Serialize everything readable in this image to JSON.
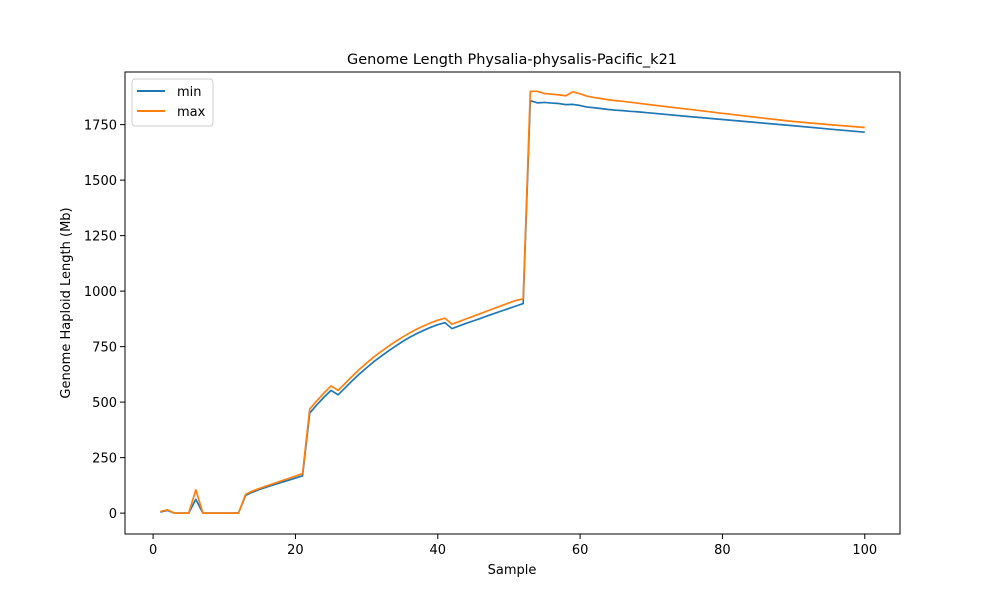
{
  "chart_data": {
    "type": "line",
    "title": "Genome Length Physalia-physalis-Pacific_k21",
    "xlabel": "Sample",
    "ylabel": "Genome Haploid Length (Mb)",
    "xlim": [
      -3.95,
      104.95
    ],
    "ylim": [
      -94,
      1987
    ],
    "x_ticks": [
      0,
      20,
      40,
      60,
      80,
      100
    ],
    "y_ticks": [
      0,
      250,
      500,
      750,
      1000,
      1250,
      1500,
      1750
    ],
    "legend_position": "upper-left",
    "grid": false,
    "series": [
      {
        "name": "min",
        "color": "#1f77b4",
        "points": [
          [
            1,
            5
          ],
          [
            2,
            12
          ],
          [
            3,
            0
          ],
          [
            4,
            0
          ],
          [
            5,
            0
          ],
          [
            6,
            62
          ],
          [
            7,
            0
          ],
          [
            8,
            0
          ],
          [
            9,
            0
          ],
          [
            10,
            0
          ],
          [
            11,
            0
          ],
          [
            12,
            1
          ],
          [
            13,
            80
          ],
          [
            14,
            95
          ],
          [
            15,
            107
          ],
          [
            16,
            118
          ],
          [
            17,
            128
          ],
          [
            18,
            138
          ],
          [
            19,
            148
          ],
          [
            20,
            158
          ],
          [
            21,
            168
          ],
          [
            22,
            450
          ],
          [
            23,
            488
          ],
          [
            24,
            522
          ],
          [
            25,
            553
          ],
          [
            26,
            533
          ],
          [
            27,
            565
          ],
          [
            28,
            597
          ],
          [
            29,
            627
          ],
          [
            30,
            655
          ],
          [
            31,
            682
          ],
          [
            32,
            706
          ],
          [
            33,
            729
          ],
          [
            34,
            751
          ],
          [
            35,
            772
          ],
          [
            36,
            791
          ],
          [
            37,
            808
          ],
          [
            38,
            823
          ],
          [
            39,
            837
          ],
          [
            40,
            849
          ],
          [
            41,
            858
          ],
          [
            42,
            831
          ],
          [
            43,
            843
          ],
          [
            44,
            855
          ],
          [
            45,
            866
          ],
          [
            46,
            877
          ],
          [
            47,
            889
          ],
          [
            48,
            900
          ],
          [
            49,
            911
          ],
          [
            50,
            922
          ],
          [
            51,
            933
          ],
          [
            52,
            944
          ],
          [
            53,
            1858
          ],
          [
            54,
            1848
          ],
          [
            55,
            1850
          ],
          [
            56,
            1847
          ],
          [
            57,
            1845
          ],
          [
            58,
            1840
          ],
          [
            59,
            1841
          ],
          [
            60,
            1836
          ],
          [
            61,
            1829
          ],
          [
            62,
            1826
          ],
          [
            63,
            1822
          ],
          [
            64,
            1818
          ],
          [
            65,
            1815
          ],
          [
            66,
            1813
          ],
          [
            67,
            1810
          ],
          [
            68,
            1808
          ],
          [
            70,
            1802
          ],
          [
            75,
            1787
          ],
          [
            80,
            1773
          ],
          [
            85,
            1759
          ],
          [
            90,
            1745
          ],
          [
            95,
            1730
          ],
          [
            100,
            1716
          ]
        ]
      },
      {
        "name": "max",
        "color": "#ff7f0e",
        "points": [
          [
            1,
            7
          ],
          [
            2,
            15
          ],
          [
            3,
            0
          ],
          [
            4,
            0
          ],
          [
            5,
            0
          ],
          [
            6,
            105
          ],
          [
            7,
            0
          ],
          [
            8,
            0
          ],
          [
            9,
            0
          ],
          [
            10,
            0
          ],
          [
            11,
            0
          ],
          [
            12,
            0
          ],
          [
            13,
            85
          ],
          [
            14,
            100
          ],
          [
            15,
            112
          ],
          [
            16,
            123
          ],
          [
            17,
            134
          ],
          [
            18,
            145
          ],
          [
            19,
            156
          ],
          [
            20,
            167
          ],
          [
            21,
            178
          ],
          [
            22,
            468
          ],
          [
            23,
            506
          ],
          [
            24,
            541
          ],
          [
            25,
            573
          ],
          [
            26,
            553
          ],
          [
            27,
            585
          ],
          [
            28,
            617
          ],
          [
            29,
            648
          ],
          [
            30,
            676
          ],
          [
            31,
            703
          ],
          [
            32,
            727
          ],
          [
            33,
            750
          ],
          [
            34,
            772
          ],
          [
            35,
            792
          ],
          [
            36,
            811
          ],
          [
            37,
            828
          ],
          [
            38,
            843
          ],
          [
            39,
            857
          ],
          [
            40,
            869
          ],
          [
            41,
            878
          ],
          [
            42,
            851
          ],
          [
            43,
            863
          ],
          [
            44,
            875
          ],
          [
            45,
            887
          ],
          [
            46,
            899
          ],
          [
            47,
            911
          ],
          [
            48,
            923
          ],
          [
            49,
            935
          ],
          [
            50,
            947
          ],
          [
            51,
            958
          ],
          [
            52,
            965
          ],
          [
            53,
            1900
          ],
          [
            54,
            1900
          ],
          [
            55,
            1890
          ],
          [
            56,
            1887
          ],
          [
            57,
            1884
          ],
          [
            58,
            1880
          ],
          [
            59,
            1898
          ],
          [
            60,
            1889
          ],
          [
            61,
            1878
          ],
          [
            62,
            1872
          ],
          [
            63,
            1867
          ],
          [
            64,
            1862
          ],
          [
            65,
            1858
          ],
          [
            66,
            1855
          ],
          [
            67,
            1851
          ],
          [
            68,
            1847
          ],
          [
            70,
            1839
          ],
          [
            75,
            1820
          ],
          [
            80,
            1801
          ],
          [
            85,
            1782
          ],
          [
            90,
            1764
          ],
          [
            95,
            1750
          ],
          [
            100,
            1737
          ]
        ]
      }
    ]
  }
}
